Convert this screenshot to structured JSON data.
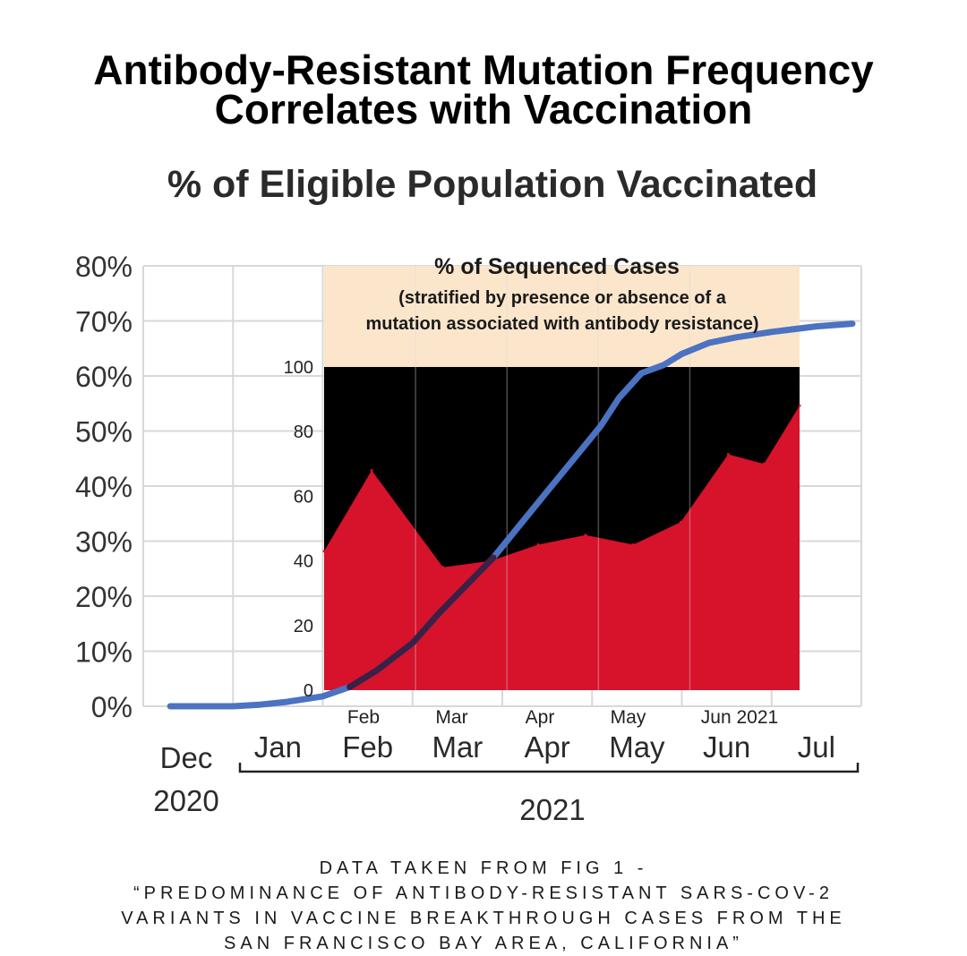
{
  "headline": {
    "line1": "Antibody-Resistant Mutation Frequency",
    "line2": "Correlates with Vaccination"
  },
  "colors": {
    "vaccination_line": "#4b73c2",
    "resistant_area": "#d7122b",
    "non_resistant_area": "#000000",
    "inset_band": "#fbe6cc",
    "grid": "#d8d8d8"
  },
  "chart_data": [
    {
      "type": "line",
      "title": "% of Eligible Population Vaccinated",
      "ylim": [
        0,
        80
      ],
      "y_ticks": [
        "80%",
        "70%",
        "60%",
        "50%",
        "40%",
        "30%",
        "20%",
        "10%",
        "0%"
      ],
      "x_ticks": [
        "Dec",
        "Jan",
        "Feb",
        "Mar",
        "Apr",
        "May",
        "Jun",
        "Jul"
      ],
      "x_group_labels": [
        "2020",
        "2021"
      ],
      "grid": true,
      "series": [
        {
          "points": [
            [
              0.3,
              0
            ],
            [
              0.6,
              0
            ],
            [
              1.0,
              0
            ],
            [
              1.3,
              0.3
            ],
            [
              1.6,
              0.8
            ],
            [
              2.0,
              1.8
            ],
            [
              2.3,
              3.5
            ],
            [
              2.6,
              6.5
            ],
            [
              3.0,
              11.5
            ],
            [
              3.3,
              17
            ],
            [
              3.6,
              22
            ],
            [
              3.9,
              27
            ],
            [
              4.2,
              33
            ],
            [
              4.5,
              39
            ],
            [
              4.8,
              45
            ],
            [
              5.1,
              51
            ],
            [
              5.3,
              56
            ],
            [
              5.55,
              60.5
            ],
            [
              5.8,
              62
            ],
            [
              6.0,
              64
            ],
            [
              6.3,
              66
            ],
            [
              6.6,
              67
            ],
            [
              7.0,
              68
            ],
            [
              7.5,
              69
            ],
            [
              7.9,
              69.5
            ]
          ]
        }
      ]
    },
    {
      "type": "area",
      "title": "% of Sequenced Cases",
      "subtitle_line1": "(stratified by presence or absence of a",
      "subtitle_line2": "mutation associated with antibody resistance)",
      "ylim": [
        0,
        100
      ],
      "y_ticks": [
        "100",
        "80",
        "60",
        "40",
        "20",
        "0"
      ],
      "x_tick_labels": [
        "Feb",
        "Mar",
        "Apr",
        "May",
        "Jun 2021"
      ],
      "x": [
        0,
        0.4,
        1,
        1.4,
        1.8,
        2.2,
        2.6,
        3,
        3.4,
        3.7,
        4
      ],
      "values": [
        43,
        68,
        38,
        40,
        45,
        48,
        45,
        52,
        73,
        70,
        88
      ],
      "series": [
        {
          "values": [
            43,
            68,
            38,
            40,
            45,
            48,
            45,
            52,
            73,
            70,
            88
          ]
        }
      ],
      "grid": true
    }
  ],
  "footer": {
    "line1": "DATA TAKEN FROM FIG 1 -",
    "line2": "“PREDOMINANCE OF ANTIBODY-RESISTANT SARS-COV-2",
    "line3": "VARIANTS IN VACCINE BREAKTHROUGH CASES FROM THE",
    "line4": "SAN FRANCISCO BAY AREA, CALIFORNIA”"
  }
}
